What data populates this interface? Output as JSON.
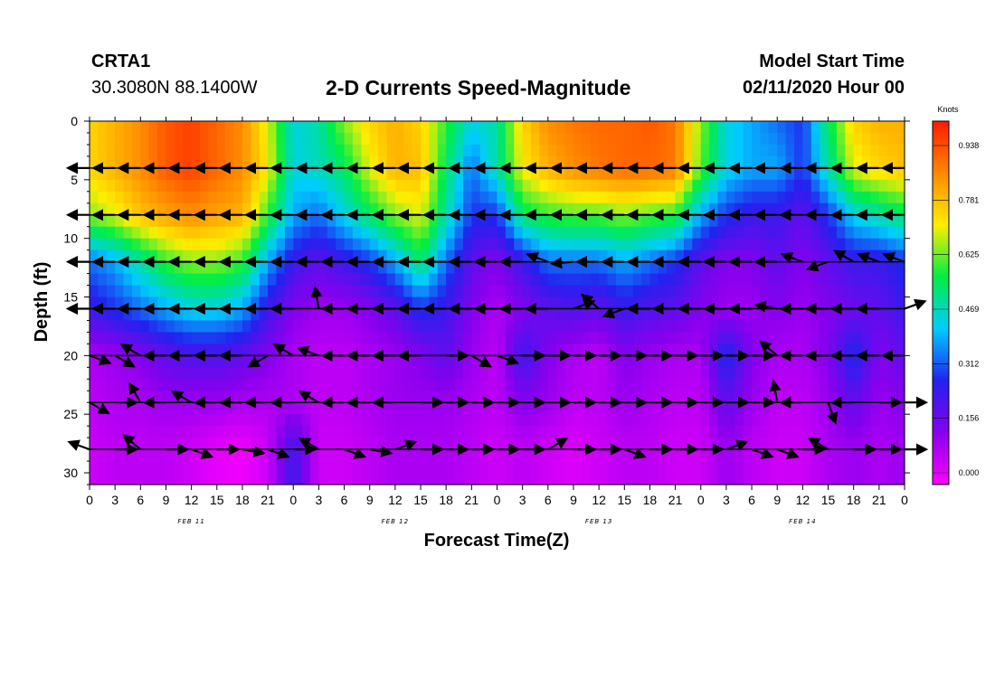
{
  "header": {
    "station_id": "CRTA1",
    "coordinates": "30.3080N 88.1400W",
    "title": "2-D Currents Speed-Magnitude",
    "model_start_label": "Model Start Time",
    "model_start_value": "02/11/2020 Hour 00"
  },
  "chart_data": {
    "type": "heatmap",
    "title": "2-D Currents Speed-Magnitude",
    "xlabel": "Forecast Time(Z)",
    "ylabel": "Depth (ft)",
    "xlim_hours": [
      0,
      96
    ],
    "ylim": [
      0,
      31
    ],
    "y_inverted": true,
    "x_tick_labels": [
      "0",
      "3",
      "6",
      "9",
      "12",
      "15",
      "18",
      "21",
      "0",
      "3",
      "6",
      "9",
      "12",
      "15",
      "18",
      "21",
      "0",
      "3",
      "6",
      "9",
      "12",
      "15",
      "18",
      "21",
      "0",
      "3",
      "6",
      "9",
      "12",
      "15",
      "18",
      "21",
      "0"
    ],
    "y_ticks": [
      0,
      5,
      10,
      15,
      20,
      25,
      30
    ],
    "date_labels": [
      {
        "label": "FEB 11",
        "hour": 12
      },
      {
        "label": "FEB 12",
        "hour": 36
      },
      {
        "label": "FEB 13",
        "hour": 60
      },
      {
        "label": "FEB 14",
        "hour": 84
      }
    ],
    "colorbar": {
      "title": "Knots",
      "tick_labels": [
        "0.000",
        "0.156",
        "0.312",
        "0.469",
        "0.625",
        "0.781",
        "0.938"
      ],
      "range": [
        0,
        1.0
      ],
      "colors": [
        "#ff00ff",
        "#8800ee",
        "#2222ee",
        "#00ccff",
        "#00ee44",
        "#ffee00",
        "#ff8800",
        "#ff1a00"
      ]
    },
    "depths": [
      0,
      4,
      8,
      12,
      16,
      20,
      24,
      28
    ],
    "hours": [
      0,
      3,
      6,
      9,
      12,
      15,
      18,
      21,
      24,
      27,
      30,
      33,
      36,
      39,
      42,
      45,
      48,
      51,
      54,
      57,
      60,
      63,
      66,
      69,
      72,
      75,
      78,
      81,
      84,
      87,
      90,
      93,
      96
    ],
    "speed": [
      [
        0.75,
        0.8,
        0.85,
        0.92,
        0.95,
        0.9,
        0.85,
        0.7,
        0.45,
        0.5,
        0.65,
        0.75,
        0.8,
        0.75,
        0.6,
        0.45,
        0.5,
        0.75,
        0.85,
        0.88,
        0.9,
        0.9,
        0.92,
        0.88,
        0.65,
        0.45,
        0.4,
        0.35,
        0.3,
        0.55,
        0.75,
        0.8,
        0.8
      ],
      [
        0.75,
        0.8,
        0.85,
        0.92,
        0.95,
        0.9,
        0.85,
        0.72,
        0.45,
        0.48,
        0.55,
        0.7,
        0.8,
        0.78,
        0.55,
        0.35,
        0.5,
        0.72,
        0.8,
        0.85,
        0.88,
        0.9,
        0.9,
        0.88,
        0.62,
        0.45,
        0.4,
        0.4,
        0.3,
        0.5,
        0.7,
        0.75,
        0.78
      ],
      [
        0.65,
        0.7,
        0.78,
        0.82,
        0.85,
        0.82,
        0.8,
        0.6,
        0.4,
        0.35,
        0.45,
        0.55,
        0.65,
        0.7,
        0.5,
        0.3,
        0.3,
        0.55,
        0.6,
        0.62,
        0.62,
        0.65,
        0.62,
        0.6,
        0.4,
        0.3,
        0.25,
        0.25,
        0.2,
        0.3,
        0.45,
        0.5,
        0.55
      ],
      [
        0.35,
        0.4,
        0.5,
        0.6,
        0.65,
        0.65,
        0.6,
        0.4,
        0.25,
        0.2,
        0.25,
        0.3,
        0.4,
        0.55,
        0.35,
        0.2,
        0.15,
        0.25,
        0.35,
        0.35,
        0.35,
        0.4,
        0.35,
        0.3,
        0.2,
        0.15,
        0.15,
        0.2,
        0.15,
        0.2,
        0.25,
        0.25,
        0.3
      ],
      [
        0.25,
        0.3,
        0.35,
        0.4,
        0.45,
        0.45,
        0.4,
        0.25,
        0.15,
        0.12,
        0.12,
        0.15,
        0.2,
        0.3,
        0.25,
        0.15,
        0.1,
        0.15,
        0.2,
        0.22,
        0.2,
        0.25,
        0.22,
        0.2,
        0.15,
        0.12,
        0.12,
        0.15,
        0.12,
        0.15,
        0.18,
        0.2,
        0.25
      ],
      [
        0.1,
        0.12,
        0.15,
        0.2,
        0.22,
        0.22,
        0.2,
        0.15,
        0.1,
        0.08,
        0.08,
        0.1,
        0.12,
        0.15,
        0.2,
        0.12,
        0.08,
        0.25,
        0.15,
        0.1,
        0.08,
        0.15,
        0.12,
        0.1,
        0.1,
        0.3,
        0.15,
        0.1,
        0.1,
        0.15,
        0.3,
        0.15,
        0.2
      ],
      [
        0.08,
        0.1,
        0.1,
        0.12,
        0.12,
        0.12,
        0.1,
        0.1,
        0.1,
        0.08,
        0.08,
        0.1,
        0.12,
        0.12,
        0.12,
        0.1,
        0.08,
        0.15,
        0.12,
        0.08,
        0.08,
        0.12,
        0.1,
        0.08,
        0.08,
        0.2,
        0.12,
        0.08,
        0.08,
        0.12,
        0.2,
        0.12,
        0.15
      ],
      [
        0.06,
        0.08,
        0.08,
        0.08,
        0.06,
        0.03,
        0.02,
        0.06,
        0.25,
        0.06,
        0.06,
        0.08,
        0.1,
        0.1,
        0.1,
        0.08,
        0.06,
        0.08,
        0.06,
        0.04,
        0.06,
        0.08,
        0.08,
        0.06,
        0.06,
        0.12,
        0.08,
        0.06,
        0.06,
        0.1,
        0.12,
        0.1,
        0.12
      ]
    ],
    "vector_rows": [
      {
        "depth": 4,
        "hours": [
          0,
          3,
          6,
          9,
          12,
          15,
          18,
          21,
          24,
          27,
          30,
          33,
          36,
          39,
          42,
          45,
          48,
          51,
          54,
          57,
          60,
          63,
          66,
          69,
          72,
          75,
          78,
          81,
          84,
          87,
          90,
          93,
          96
        ],
        "angles": [
          180,
          180,
          180,
          180,
          180,
          180,
          180,
          180,
          180,
          180,
          180,
          180,
          180,
          180,
          180,
          180,
          180,
          180,
          180,
          180,
          180,
          180,
          180,
          180,
          180,
          180,
          180,
          180,
          180,
          180,
          180,
          180,
          180
        ]
      },
      {
        "depth": 8,
        "hours": [
          0,
          3,
          6,
          9,
          12,
          15,
          18,
          21,
          24,
          27,
          30,
          33,
          36,
          39,
          42,
          45,
          48,
          51,
          54,
          57,
          60,
          63,
          66,
          69,
          72,
          75,
          78,
          81,
          84,
          87,
          90,
          93,
          96
        ],
        "angles": [
          180,
          180,
          180,
          180,
          180,
          180,
          180,
          180,
          180,
          180,
          180,
          180,
          180,
          180,
          180,
          180,
          180,
          180,
          180,
          180,
          180,
          180,
          180,
          180,
          180,
          180,
          180,
          180,
          180,
          180,
          180,
          180,
          180
        ]
      },
      {
        "depth": 12,
        "hours": [
          0,
          3,
          6,
          9,
          12,
          15,
          18,
          21,
          24,
          27,
          30,
          33,
          36,
          39,
          42,
          45,
          48,
          51,
          54,
          57,
          60,
          63,
          66,
          69,
          72,
          75,
          78,
          81,
          84,
          87,
          90,
          93,
          96
        ],
        "angles": [
          180,
          180,
          180,
          180,
          180,
          180,
          180,
          180,
          180,
          180,
          180,
          180,
          180,
          180,
          180,
          180,
          180,
          180,
          160,
          185,
          180,
          180,
          180,
          180,
          180,
          180,
          180,
          180,
          160,
          200,
          150,
          160,
          160
        ]
      },
      {
        "depth": 16,
        "hours": [
          0,
          3,
          6,
          9,
          12,
          15,
          18,
          21,
          24,
          27,
          30,
          33,
          36,
          39,
          42,
          45,
          48,
          51,
          54,
          57,
          60,
          63,
          66,
          69,
          72,
          75,
          78,
          81,
          84,
          87,
          90,
          93,
          96
        ],
        "angles": [
          180,
          180,
          180,
          180,
          180,
          180,
          180,
          180,
          180,
          100,
          180,
          180,
          180,
          180,
          180,
          180,
          180,
          180,
          180,
          20,
          140,
          200,
          180,
          180,
          180,
          180,
          180,
          170,
          180,
          180,
          180,
          180,
          20
        ]
      },
      {
        "depth": 20,
        "hours": [
          0,
          3,
          6,
          9,
          12,
          15,
          18,
          21,
          24,
          27,
          30,
          33,
          36,
          39,
          42,
          45,
          48,
          51,
          54,
          57,
          60,
          63,
          66,
          69,
          72,
          75,
          78,
          81,
          84,
          87,
          90,
          93,
          96
        ],
        "angles": [
          -20,
          -30,
          150,
          180,
          180,
          180,
          180,
          210,
          150,
          160,
          180,
          180,
          180,
          180,
          0,
          -30,
          -20,
          0,
          0,
          0,
          0,
          0,
          0,
          0,
          0,
          0,
          0,
          140,
          180,
          180,
          180,
          180,
          180
        ]
      },
      {
        "depth": 24,
        "hours": [
          0,
          3,
          6,
          9,
          12,
          15,
          18,
          21,
          24,
          27,
          30,
          33,
          36,
          39,
          42,
          45,
          48,
          51,
          54,
          57,
          60,
          63,
          66,
          69,
          72,
          75,
          78,
          81,
          84,
          87,
          90,
          93,
          96
        ],
        "angles": [
          -30,
          0,
          120,
          180,
          150,
          180,
          180,
          180,
          180,
          150,
          180,
          180,
          180,
          0,
          0,
          0,
          0,
          0,
          0,
          0,
          0,
          0,
          0,
          0,
          0,
          0,
          0,
          100,
          180,
          -70,
          180,
          0,
          0
        ]
      },
      {
        "depth": 28,
        "hours": [
          0,
          3,
          6,
          9,
          12,
          15,
          18,
          21,
          24,
          27,
          30,
          33,
          36,
          39,
          42,
          45,
          48,
          51,
          54,
          57,
          60,
          63,
          66,
          69,
          72,
          75,
          78,
          81,
          84,
          87,
          90,
          93,
          96
        ],
        "angles": [
          160,
          0,
          140,
          0,
          -20,
          0,
          -10,
          -20,
          0,
          150,
          -20,
          -10,
          20,
          0,
          0,
          0,
          0,
          0,
          30,
          0,
          0,
          -20,
          0,
          0,
          0,
          20,
          -20,
          -20,
          0,
          150,
          0,
          0,
          0
        ]
      }
    ]
  }
}
